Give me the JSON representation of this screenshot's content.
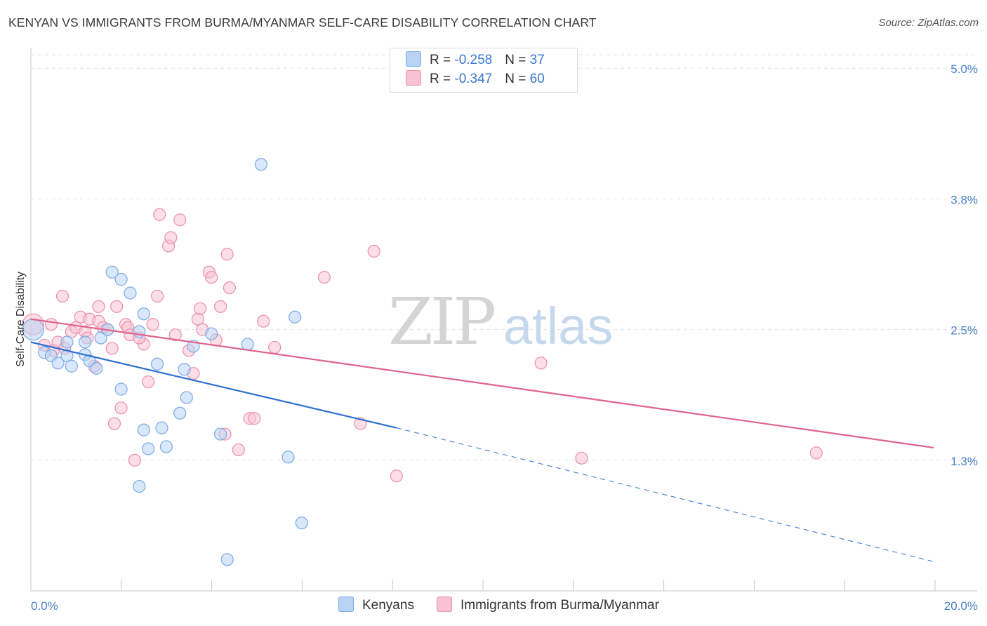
{
  "title": "KENYAN VS IMMIGRANTS FROM BURMA/MYANMAR SELF-CARE DISABILITY CORRELATION CHART",
  "source": "Source: ZipAtlas.com",
  "watermark": {
    "zip": "ZIP",
    "atlas": "atlas"
  },
  "legend": {
    "rows": [
      {
        "r_label": "R = ",
        "r_value": "-0.258",
        "n_label": "N = ",
        "n_value": "37"
      },
      {
        "r_label": "R = ",
        "r_value": "-0.347",
        "n_label": "N = ",
        "n_value": "60"
      }
    ]
  },
  "bottom_legend": {
    "kenyans": "Kenyans",
    "burma": "Immigrants from Burma/Myanmar"
  },
  "chart_data": {
    "type": "scatter",
    "title": "KENYAN VS IMMIGRANTS FROM BURMA/MYANMAR SELF-CARE DISABILITY CORRELATION CHART",
    "xlabel": "",
    "ylabel": "Self-Care Disability",
    "xlim": [
      0,
      20
    ],
    "ylim": [
      0.0,
      5.25
    ],
    "x_tick_labels": [
      "0.0%",
      "20.0%"
    ],
    "y_ticks": [
      1.25,
      2.5,
      3.75,
      5.0
    ],
    "y_tick_labels": [
      "1.3%",
      "2.5%",
      "3.8%",
      "5.0%"
    ],
    "grid": true,
    "series": [
      {
        "name": "Kenyans",
        "color": "#7aaae6",
        "fill": "#b8d3f4",
        "r": -0.258,
        "n": 37,
        "trend": {
          "x0": 0,
          "y0": 2.38,
          "x1": 8.1,
          "y1": 1.56,
          "dash_to_x": 20,
          "dash_to_y": 0.28
        },
        "points": [
          [
            0.05,
            2.5
          ],
          [
            0.3,
            2.28
          ],
          [
            0.45,
            2.25
          ],
          [
            0.6,
            2.18
          ],
          [
            0.8,
            2.38
          ],
          [
            0.8,
            2.25
          ],
          [
            0.9,
            2.15
          ],
          [
            1.2,
            2.38
          ],
          [
            1.2,
            2.26
          ],
          [
            1.3,
            2.2
          ],
          [
            1.45,
            2.13
          ],
          [
            1.55,
            2.42
          ],
          [
            1.7,
            2.5
          ],
          [
            1.8,
            3.05
          ],
          [
            2.0,
            2.98
          ],
          [
            2.0,
            1.93
          ],
          [
            2.2,
            2.85
          ],
          [
            2.4,
            2.48
          ],
          [
            2.5,
            2.65
          ],
          [
            2.5,
            1.54
          ],
          [
            2.6,
            1.36
          ],
          [
            2.8,
            2.17
          ],
          [
            2.9,
            1.56
          ],
          [
            3.0,
            1.38
          ],
          [
            3.3,
            1.7
          ],
          [
            3.4,
            2.12
          ],
          [
            3.6,
            2.34
          ],
          [
            4.0,
            2.46
          ],
          [
            4.2,
            1.5
          ],
          [
            4.35,
            0.3
          ],
          [
            4.8,
            2.36
          ],
          [
            5.1,
            4.08
          ],
          [
            5.7,
            1.28
          ],
          [
            5.85,
            2.62
          ],
          [
            6.0,
            0.65
          ],
          [
            3.45,
            1.85
          ],
          [
            2.4,
            1.0
          ]
        ]
      },
      {
        "name": "Immigrants from Burma/Myanmar",
        "color": "#ec8fac",
        "fill": "#f8c2d2",
        "r": -0.347,
        "n": 60,
        "trend": {
          "x0": 0,
          "y0": 2.6,
          "x1": 20,
          "y1": 1.37
        },
        "points": [
          [
            0.05,
            2.55
          ],
          [
            0.3,
            2.35
          ],
          [
            0.5,
            2.3
          ],
          [
            0.6,
            2.38
          ],
          [
            0.7,
            2.82
          ],
          [
            0.75,
            2.32
          ],
          [
            0.9,
            2.48
          ],
          [
            1.0,
            2.52
          ],
          [
            1.1,
            2.62
          ],
          [
            1.2,
            2.48
          ],
          [
            1.3,
            2.6
          ],
          [
            1.4,
            2.15
          ],
          [
            1.5,
            2.58
          ],
          [
            1.5,
            2.72
          ],
          [
            1.6,
            2.52
          ],
          [
            1.7,
            2.5
          ],
          [
            1.8,
            2.32
          ],
          [
            1.85,
            1.6
          ],
          [
            1.9,
            2.72
          ],
          [
            2.0,
            1.75
          ],
          [
            2.1,
            2.55
          ],
          [
            2.15,
            2.52
          ],
          [
            2.2,
            2.45
          ],
          [
            2.3,
            1.25
          ],
          [
            2.5,
            2.36
          ],
          [
            2.6,
            2.0
          ],
          [
            2.7,
            2.55
          ],
          [
            2.8,
            2.82
          ],
          [
            2.85,
            3.6
          ],
          [
            3.05,
            3.3
          ],
          [
            3.1,
            3.38
          ],
          [
            3.2,
            2.45
          ],
          [
            3.3,
            3.55
          ],
          [
            3.5,
            2.3
          ],
          [
            3.6,
            2.08
          ],
          [
            3.7,
            2.6
          ],
          [
            3.75,
            2.7
          ],
          [
            3.8,
            2.5
          ],
          [
            3.95,
            3.05
          ],
          [
            4.0,
            3.0
          ],
          [
            4.1,
            2.4
          ],
          [
            4.2,
            2.72
          ],
          [
            4.3,
            1.5
          ],
          [
            4.35,
            3.22
          ],
          [
            4.4,
            2.9
          ],
          [
            4.6,
            1.35
          ],
          [
            4.85,
            1.65
          ],
          [
            4.95,
            1.65
          ],
          [
            5.15,
            2.58
          ],
          [
            5.4,
            2.33
          ],
          [
            6.5,
            3.0
          ],
          [
            7.3,
            1.6
          ],
          [
            7.6,
            3.25
          ],
          [
            8.1,
            1.1
          ],
          [
            11.3,
            2.18
          ],
          [
            12.2,
            1.27
          ],
          [
            17.4,
            1.32
          ],
          [
            0.45,
            2.55
          ],
          [
            2.4,
            2.42
          ],
          [
            1.25,
            2.42
          ]
        ]
      }
    ]
  }
}
